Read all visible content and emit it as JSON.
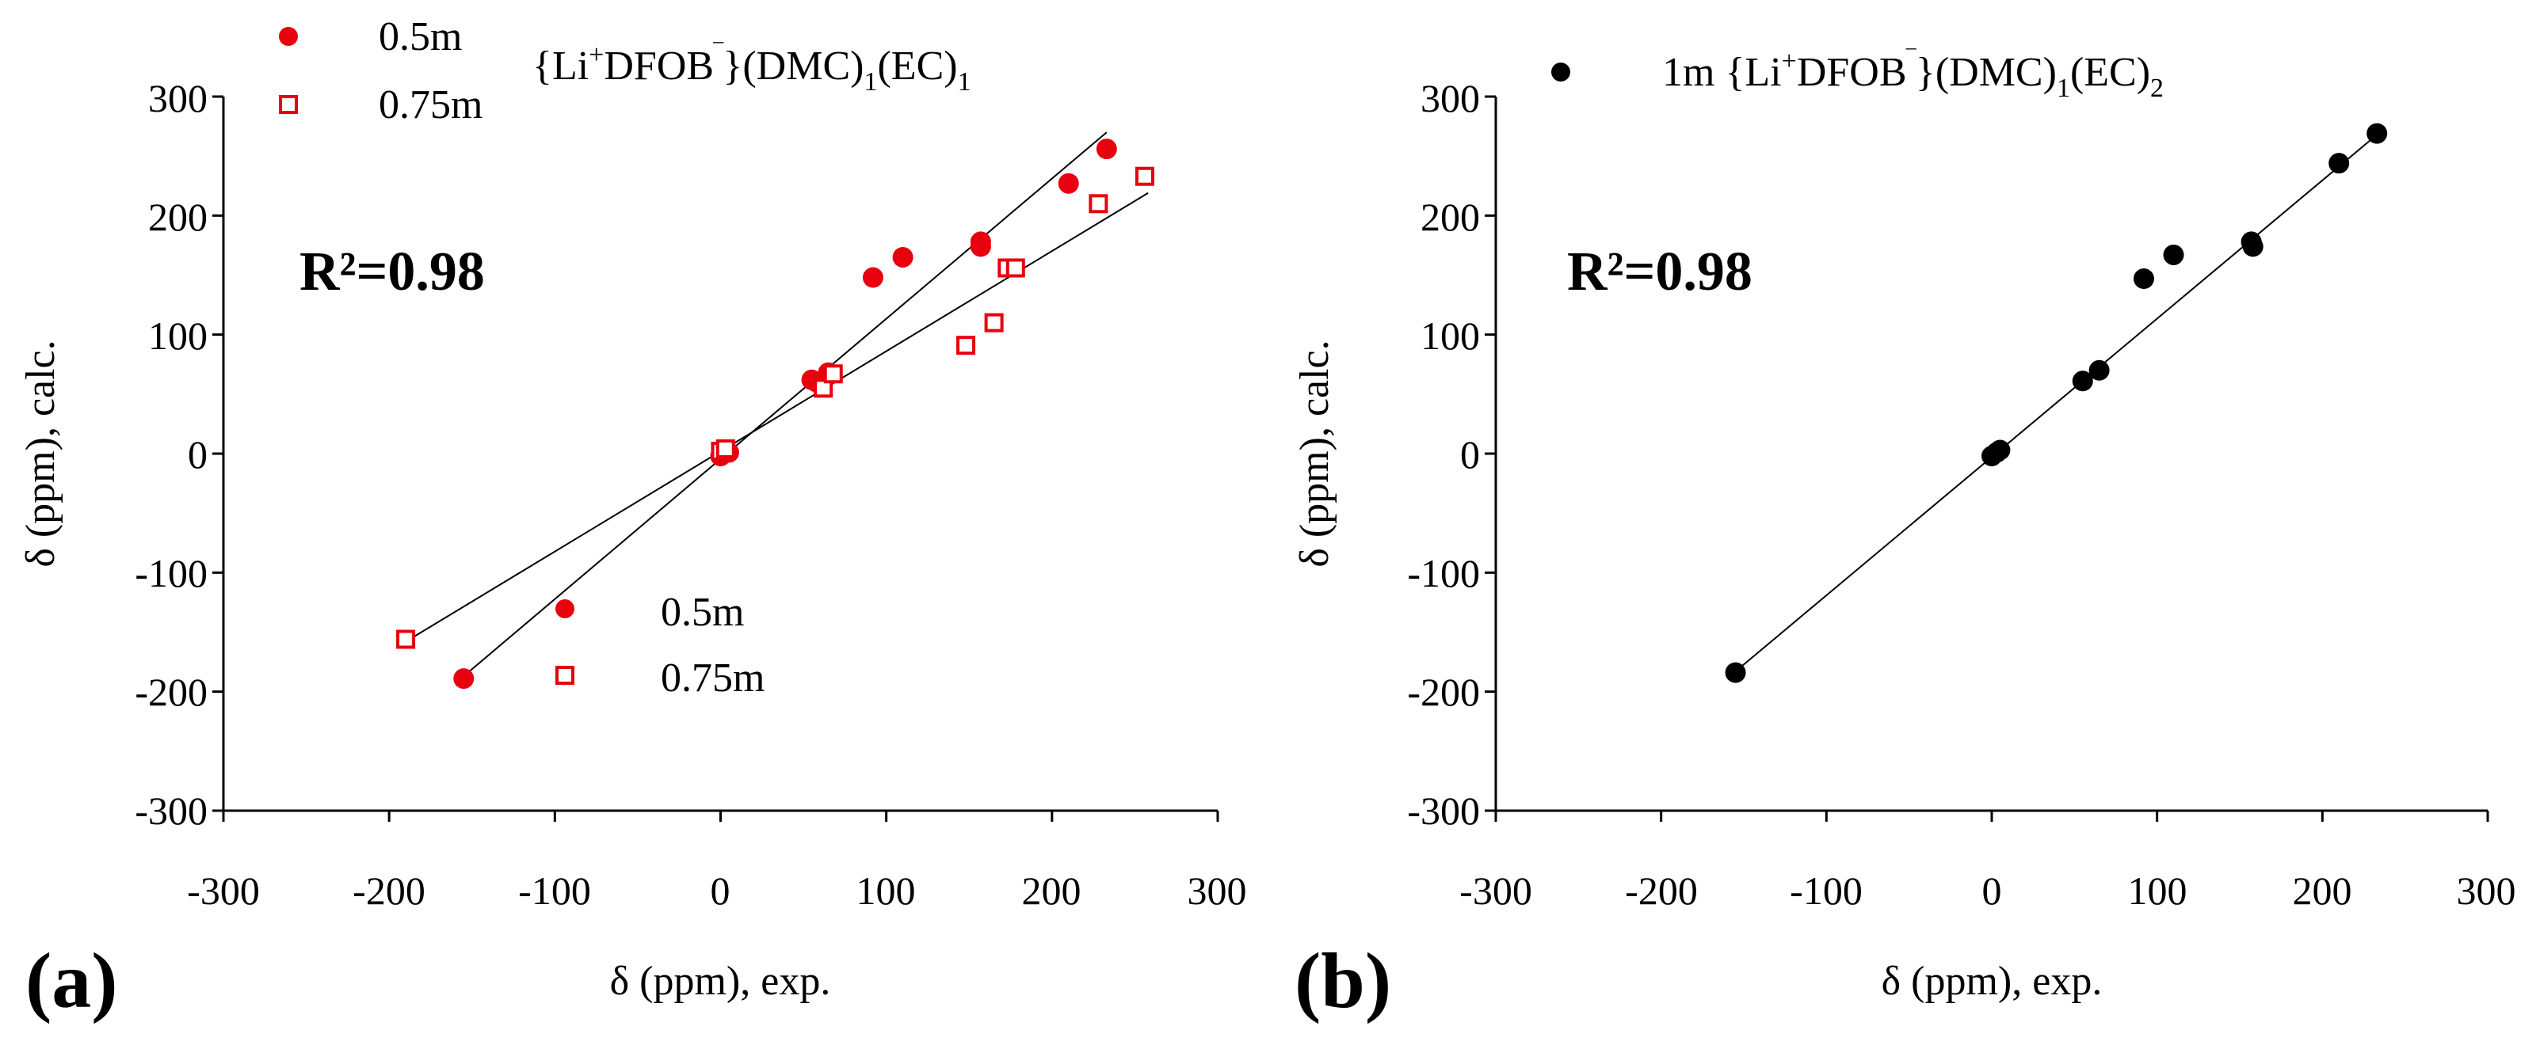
{
  "colors": {
    "red": "#e8000f",
    "black": "#000000"
  },
  "chart_data": [
    {
      "type": "scatter",
      "panel_label": "(a)",
      "xlabel": "δ (ppm), exp.",
      "ylabel": "δ (ppm), calc.",
      "xlim": [
        -300,
        300
      ],
      "ylim": [
        -300,
        300
      ],
      "xticks": [
        "-300",
        "-200",
        "-100",
        "0",
        "100",
        "200",
        "300"
      ],
      "yticks": [
        "300",
        "200",
        "100",
        "0",
        "-100",
        "-200",
        "-300"
      ],
      "grid": false,
      "r2_label": "R²=0.98",
      "title": {
        "prefix": "{Li",
        "sup1": "+",
        "mid": "DFOB",
        "sup2": "‾",
        "close": "}(DMC)",
        "sub1": "1",
        "ec": "(EC)",
        "sub2": "1"
      },
      "legend_top": [
        {
          "name": "0.5m",
          "marker": "filled-circle"
        },
        {
          "name": "0.75m",
          "marker": "open-square"
        }
      ],
      "legend_inner": [
        {
          "name": "0.5m",
          "marker": "filled-circle"
        },
        {
          "name": "0.75m",
          "marker": "open-square"
        }
      ],
      "series": [
        {
          "name": "0.5m",
          "marker": "filled-circle",
          "color": "#e8000f",
          "x": [
            -155,
            0,
            2,
            5,
            55,
            58,
            65,
            92,
            110,
            157,
            157,
            210,
            233
          ],
          "y": [
            -189,
            -2,
            3,
            1,
            62,
            60,
            68,
            148,
            165,
            178,
            174,
            227,
            256
          ],
          "fit": {
            "x": [
              -155,
              233
            ],
            "y": [
              -187,
              270
            ]
          }
        },
        {
          "name": "0.75m",
          "marker": "open-square",
          "color": "#e8000f",
          "x": [
            -190,
            0,
            3,
            62,
            68,
            148,
            165,
            173,
            178,
            228,
            256
          ],
          "y": [
            -156,
            2,
            4,
            55,
            67,
            91,
            110,
            156,
            156,
            210,
            233
          ],
          "fit": {
            "x": [
              -190,
              258
            ],
            "y": [
              -158,
              219
            ]
          }
        }
      ]
    },
    {
      "type": "scatter",
      "panel_label": "(b)",
      "xlabel": "δ (ppm), exp.",
      "ylabel": "δ (ppm), calc.",
      "xlim": [
        -300,
        300
      ],
      "ylim": [
        -300,
        300
      ],
      "xticks": [
        "-300",
        "-200",
        "-100",
        "0",
        "100",
        "200",
        "300"
      ],
      "yticks": [
        "300",
        "200",
        "100",
        "0",
        "-100",
        "-200",
        "-300"
      ],
      "grid": false,
      "r2_label": "R²=0.98",
      "legend": {
        "lead": "1m {Li",
        "sup1": "+",
        "mid": "DFOB",
        "sup2": "‾",
        "close": "}(DMC)",
        "sub1": "1",
        "ec": "(EC)",
        "sub2": "2"
      },
      "series": [
        {
          "name": "1m",
          "marker": "filled-circle",
          "color": "#000000",
          "x": [
            -155,
            0,
            3,
            5,
            55,
            65,
            92,
            110,
            157,
            158,
            210,
            233
          ],
          "y": [
            -184,
            -2,
            1,
            3,
            61,
            70,
            147,
            167,
            178,
            174,
            244,
            269
          ],
          "fit": {
            "x": [
              -155,
              233
            ],
            "y": [
              -183,
              268
            ]
          }
        }
      ]
    }
  ]
}
